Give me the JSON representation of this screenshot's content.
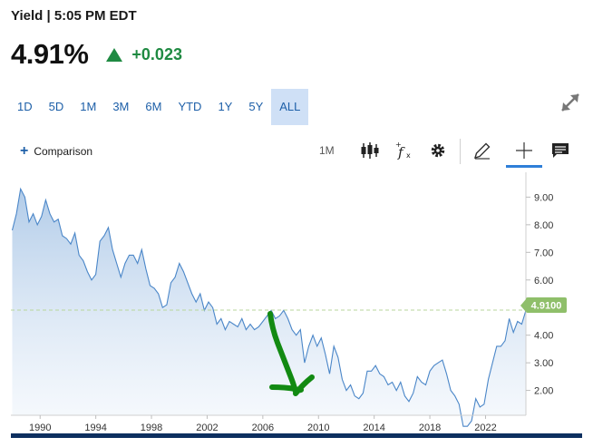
{
  "header": {
    "title": "Yield | 5:05 PM EDT",
    "price": "4.91%",
    "change": "+0.023"
  },
  "range_tabs": [
    "1D",
    "5D",
    "1M",
    "3M",
    "6M",
    "YTD",
    "1Y",
    "5Y",
    "ALL"
  ],
  "active_range": "ALL",
  "toolbar": {
    "comparison_label": "Comparison",
    "interval_label": "1M",
    "icons": [
      "candlestick-icon",
      "function-icon",
      "gear-icon",
      "pencil-icon",
      "crosshair-icon",
      "comment-icon"
    ]
  },
  "colors": {
    "accent": "#1d5fa8",
    "up": "#1f8a42",
    "line": "#4a86c8",
    "annotation": "#128a12"
  },
  "chart_data": {
    "type": "area",
    "x_ticks": [
      "1990",
      "1994",
      "1998",
      "2002",
      "2006",
      "2010",
      "2014",
      "2018",
      "2022"
    ],
    "y_ticks": [
      "2.00",
      "3.00",
      "4.00",
      "5.00",
      "6.00",
      "7.00",
      "8.00",
      "9.00"
    ],
    "ylim": [
      1.1,
      9.9
    ],
    "xlim": [
      1987.9,
      2024.9
    ],
    "current_value_label": "4.9100",
    "current_value": 4.91,
    "grid": false,
    "series": [
      {
        "x": [
          1988.0,
          1988.3,
          1988.6,
          1988.9,
          1989.2,
          1989.5,
          1989.8,
          1990.1,
          1990.4,
          1990.7,
          1991.0,
          1991.3,
          1991.6,
          1991.9,
          1992.2,
          1992.5,
          1992.8,
          1993.1,
          1993.4,
          1993.7,
          1994.0,
          1994.3,
          1994.6,
          1994.9,
          1995.2,
          1995.5,
          1995.8,
          1996.1,
          1996.4,
          1996.7,
          1997.0,
          1997.3,
          1997.6,
          1997.9,
          1998.2,
          1998.5,
          1998.8,
          1999.1,
          1999.4,
          1999.7,
          2000.0,
          2000.3,
          2000.6,
          2000.9,
          2001.2,
          2001.5,
          2001.8,
          2002.1,
          2002.4,
          2002.7,
          2003.0,
          2003.3,
          2003.6,
          2003.9,
          2004.2,
          2004.5,
          2004.8,
          2005.1,
          2005.4,
          2005.7,
          2006.0,
          2006.3,
          2006.6,
          2006.9,
          2007.2,
          2007.5,
          2007.8,
          2008.1,
          2008.4,
          2008.7,
          2009.0,
          2009.3,
          2009.6,
          2009.9,
          2010.2,
          2010.5,
          2010.8,
          2011.1,
          2011.4,
          2011.7,
          2012.0,
          2012.3,
          2012.6,
          2012.9,
          2013.2,
          2013.5,
          2013.8,
          2014.1,
          2014.4,
          2014.7,
          2015.0,
          2015.3,
          2015.6,
          2015.9,
          2016.2,
          2016.5,
          2016.8,
          2017.1,
          2017.4,
          2017.7,
          2018.0,
          2018.3,
          2018.6,
          2018.9,
          2019.2,
          2019.5,
          2019.8,
          2020.1,
          2020.4,
          2020.7,
          2021.0,
          2021.3,
          2021.6,
          2021.9,
          2022.2,
          2022.5,
          2022.8,
          2023.1,
          2023.4,
          2023.7,
          2024.0,
          2024.3,
          2024.6,
          2024.9
        ],
        "y": [
          7.8,
          8.4,
          9.3,
          9.0,
          8.1,
          8.4,
          8.0,
          8.3,
          8.9,
          8.4,
          8.1,
          8.2,
          7.6,
          7.5,
          7.3,
          7.7,
          6.9,
          6.7,
          6.3,
          6.0,
          6.2,
          7.4,
          7.6,
          7.9,
          7.1,
          6.6,
          6.1,
          6.6,
          6.9,
          6.9,
          6.6,
          7.1,
          6.4,
          5.8,
          5.7,
          5.5,
          5.0,
          5.1,
          5.9,
          6.1,
          6.6,
          6.3,
          5.9,
          5.5,
          5.2,
          5.5,
          4.9,
          5.2,
          5.0,
          4.4,
          4.6,
          4.2,
          4.5,
          4.4,
          4.3,
          4.6,
          4.2,
          4.4,
          4.2,
          4.3,
          4.5,
          4.7,
          4.9,
          4.6,
          4.7,
          4.9,
          4.6,
          4.2,
          4.0,
          4.2,
          3.0,
          3.6,
          4.0,
          3.6,
          3.9,
          3.3,
          2.6,
          3.6,
          3.2,
          2.4,
          2.0,
          2.2,
          1.8,
          1.7,
          1.9,
          2.7,
          2.7,
          2.9,
          2.6,
          2.5,
          2.2,
          2.3,
          2.0,
          2.3,
          1.8,
          1.6,
          1.9,
          2.5,
          2.3,
          2.2,
          2.7,
          2.9,
          3.0,
          3.1,
          2.6,
          2.0,
          1.8,
          1.5,
          0.7,
          0.7,
          0.9,
          1.7,
          1.4,
          1.5,
          2.4,
          3.0,
          3.6,
          3.6,
          3.8,
          4.6,
          4.1,
          4.5,
          4.4,
          4.9
        ]
      }
    ],
    "annotation": "hand-drawn green arrow pointing down from 2006 to 2009"
  }
}
